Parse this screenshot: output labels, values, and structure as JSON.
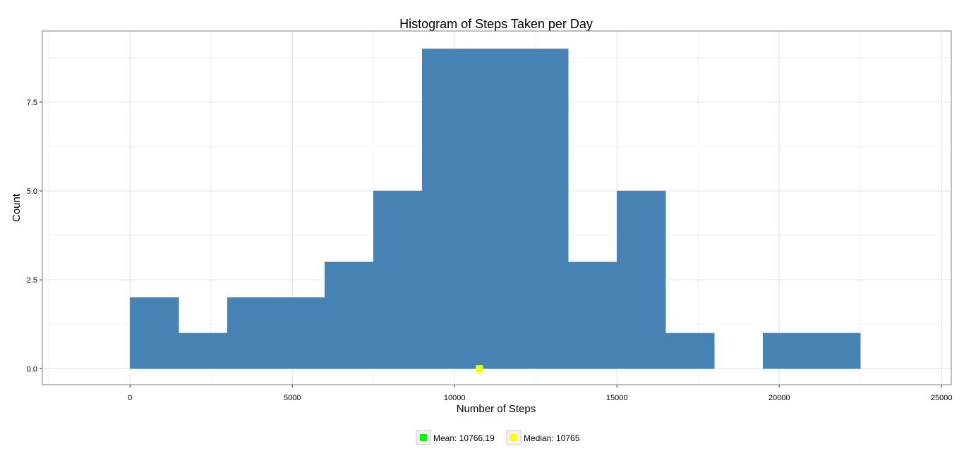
{
  "chart_data": {
    "type": "bar",
    "title": "Histogram of Steps Taken per Day",
    "xlabel": "Number of Steps",
    "ylabel": "Count",
    "bin_width": 1500,
    "bins": [
      {
        "start": 0,
        "end": 1500,
        "count": 2
      },
      {
        "start": 1500,
        "end": 3000,
        "count": 1
      },
      {
        "start": 3000,
        "end": 4500,
        "count": 2
      },
      {
        "start": 4500,
        "end": 6000,
        "count": 2
      },
      {
        "start": 6000,
        "end": 7500,
        "count": 3
      },
      {
        "start": 7500,
        "end": 9000,
        "count": 5
      },
      {
        "start": 9000,
        "end": 10500,
        "count": 9
      },
      {
        "start": 10500,
        "end": 12000,
        "count": 9
      },
      {
        "start": 12000,
        "end": 13500,
        "count": 9
      },
      {
        "start": 13500,
        "end": 15000,
        "count": 3
      },
      {
        "start": 15000,
        "end": 16500,
        "count": 5
      },
      {
        "start": 16500,
        "end": 18000,
        "count": 1
      },
      {
        "start": 18000,
        "end": 19500,
        "count": 0
      },
      {
        "start": 19500,
        "end": 21000,
        "count": 1
      },
      {
        "start": 21000,
        "end": 22500,
        "count": 1
      }
    ],
    "xlim": [
      -2700,
      25300
    ],
    "ylim": [
      -0.45,
      9.5
    ],
    "x_ticks": [
      0,
      5000,
      10000,
      15000,
      20000,
      25000
    ],
    "x_tick_labels": [
      "0",
      "5000",
      "10000",
      "15000",
      "20000",
      "25000"
    ],
    "y_ticks": [
      0,
      2.5,
      5,
      7.5
    ],
    "y_tick_labels": [
      "0.0",
      "2.5",
      "5.0",
      "7.5"
    ],
    "grid": true,
    "bar_color": "#4682b4",
    "markers": [
      {
        "name": "Mean",
        "x": 10766.19,
        "y": 0,
        "color": "#00ff00"
      },
      {
        "name": "Median",
        "x": 10765,
        "y": 0,
        "color": "#ffff00"
      }
    ],
    "legend": {
      "position": "bottom",
      "items": [
        {
          "label": "Mean: 10766.19",
          "color": "#00ff00"
        },
        {
          "label": "Median: 10765",
          "color": "#ffff00"
        }
      ]
    }
  }
}
